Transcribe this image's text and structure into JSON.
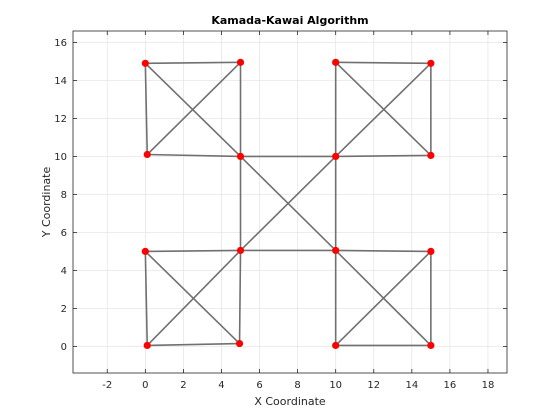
{
  "chart_data": {
    "type": "scatter",
    "title": "Kamada-Kawai Algorithm",
    "xlabel": "X Coordinate",
    "ylabel": "Y Coordinate",
    "xlim": [
      -3.8,
      19
    ],
    "ylim": [
      -1.4,
      16.6
    ],
    "xticks": [
      -2,
      0,
      2,
      4,
      6,
      8,
      10,
      12,
      14,
      16,
      18
    ],
    "yticks": [
      0,
      2,
      4,
      6,
      8,
      10,
      12,
      14,
      16
    ],
    "grid": true,
    "node_color": "#ff0000",
    "edge_color": "#707070",
    "nodes": [
      {
        "x": 0.0,
        "y": 14.9
      },
      {
        "x": 5.0,
        "y": 14.95
      },
      {
        "x": 0.1,
        "y": 10.1
      },
      {
        "x": 5.0,
        "y": 10.0
      },
      {
        "x": 10.0,
        "y": 14.95
      },
      {
        "x": 15.0,
        "y": 14.9
      },
      {
        "x": 10.0,
        "y": 10.0
      },
      {
        "x": 15.0,
        "y": 10.05
      },
      {
        "x": 0.0,
        "y": 5.0
      },
      {
        "x": 5.0,
        "y": 5.05
      },
      {
        "x": 0.1,
        "y": 0.05
      },
      {
        "x": 4.95,
        "y": 0.15
      },
      {
        "x": 10.0,
        "y": 5.05
      },
      {
        "x": 15.0,
        "y": 5.0
      },
      {
        "x": 10.0,
        "y": 0.05
      },
      {
        "x": 15.0,
        "y": 0.05
      }
    ],
    "edges": [
      [
        0,
        1
      ],
      [
        0,
        2
      ],
      [
        1,
        3
      ],
      [
        2,
        3
      ],
      [
        1,
        2
      ],
      [
        0,
        3
      ],
      [
        4,
        5
      ],
      [
        4,
        6
      ],
      [
        5,
        7
      ],
      [
        6,
        7
      ],
      [
        4,
        7
      ],
      [
        5,
        6
      ],
      [
        8,
        9
      ],
      [
        8,
        10
      ],
      [
        9,
        11
      ],
      [
        10,
        11
      ],
      [
        8,
        11
      ],
      [
        9,
        10
      ],
      [
        12,
        13
      ],
      [
        12,
        14
      ],
      [
        13,
        15
      ],
      [
        14,
        15
      ],
      [
        12,
        15
      ],
      [
        13,
        14
      ],
      [
        3,
        6
      ],
      [
        3,
        9
      ],
      [
        6,
        12
      ],
      [
        9,
        12
      ],
      [
        3,
        12
      ],
      [
        6,
        9
      ]
    ]
  }
}
